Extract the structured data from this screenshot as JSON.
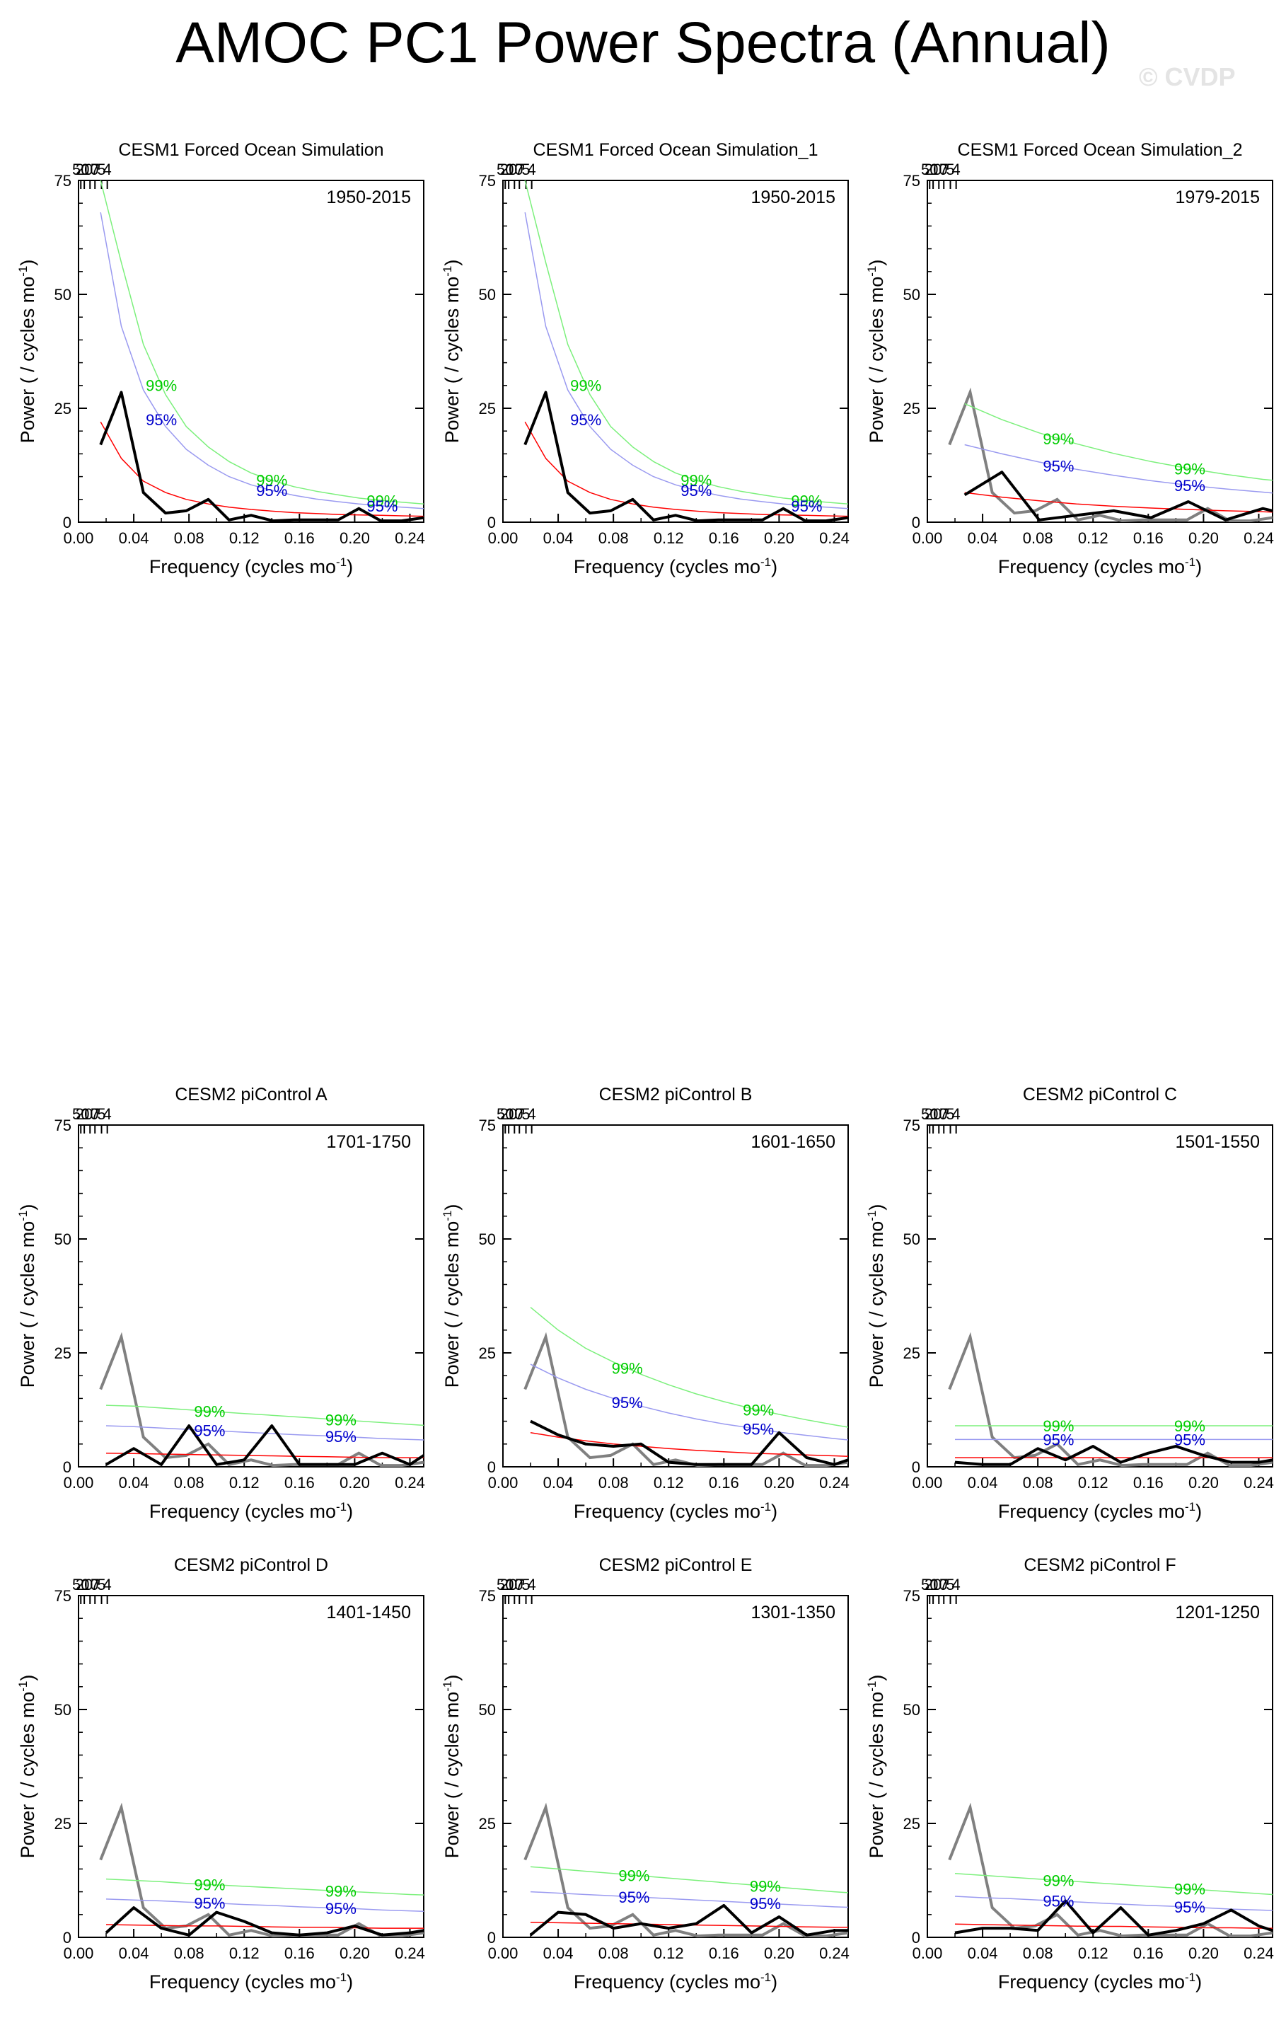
{
  "figure": {
    "title": "AMOC PC1 Power Spectra (Annual)",
    "watermark": "© CVDP"
  },
  "colors": {
    "spectrum": "#000000",
    "reference_spectrum": "#808080",
    "red_noise": "#ff0000",
    "ci95": "#0000cc",
    "ci99": "#00cc00",
    "ci95_line": "#9a9af0",
    "ci99_line": "#7cf07c"
  },
  "axes_common": {
    "xlabel": "Frequency (cycles mo",
    "xlabel_sup": "-1",
    "xlabel_end": ")",
    "ylabel": "Power ( / cycles mo",
    "ylabel_sup": "-1",
    "ylabel_end": ")",
    "xticks": [
      "0.00",
      "0.04",
      "0.08",
      "0.12",
      "0.16",
      "0.20",
      "0.24"
    ],
    "yticks": [
      "0",
      "25",
      "50",
      "75"
    ],
    "period_ticks": [
      "50",
      "20",
      "10",
      "7",
      "5",
      "4"
    ],
    "ci95_label": "95%",
    "ci99_label": "99%"
  },
  "chart_data": [
    {
      "type": "line",
      "title": "CESM1 Forced Ocean Simulation",
      "period": "1950-2015",
      "xlim": [
        0,
        0.25
      ],
      "ylim": [
        0,
        75
      ],
      "x": [
        0.016,
        0.031,
        0.047,
        0.063,
        0.078,
        0.094,
        0.109,
        0.125,
        0.141,
        0.156,
        0.172,
        0.188,
        0.203,
        0.219,
        0.234,
        0.25
      ],
      "series": [
        {
          "role": "spectrum",
          "values": [
            17,
            28.5,
            6.5,
            2,
            2.5,
            5,
            0.5,
            1.5,
            0.3,
            0.5,
            0.5,
            0.5,
            3,
            0.3,
            0.3,
            1
          ]
        },
        {
          "role": "red_noise",
          "values": [
            22,
            14,
            9,
            6.5,
            5,
            4,
            3.3,
            2.8,
            2.4,
            2.1,
            1.9,
            1.7,
            1.6,
            1.5,
            1.4,
            1.3
          ]
        },
        {
          "role": "ci95",
          "values": [
            68,
            43,
            29,
            21,
            16,
            12.5,
            10,
            8.2,
            6.9,
            5.9,
            5.1,
            4.5,
            4,
            3.6,
            3.3,
            3
          ]
        },
        {
          "role": "ci99",
          "values": [
            90,
            57,
            39,
            28,
            21,
            16.5,
            13.3,
            10.8,
            9.1,
            7.8,
            6.8,
            6,
            5.3,
            4.8,
            4.4,
            4
          ]
        }
      ],
      "ci_label_x": [
        0.06,
        0.14,
        0.22
      ]
    },
    {
      "type": "line",
      "title": "CESM1 Forced Ocean Simulation_1",
      "period": "1950-2015",
      "xlim": [
        0,
        0.25
      ],
      "ylim": [
        0,
        75
      ],
      "x": [
        0.016,
        0.031,
        0.047,
        0.063,
        0.078,
        0.094,
        0.109,
        0.125,
        0.141,
        0.156,
        0.172,
        0.188,
        0.203,
        0.219,
        0.234,
        0.25
      ],
      "series": [
        {
          "role": "spectrum",
          "values": [
            17,
            28.5,
            6.5,
            2,
            2.5,
            5,
            0.5,
            1.5,
            0.3,
            0.5,
            0.5,
            0.5,
            3,
            0.3,
            0.3,
            1
          ]
        },
        {
          "role": "red_noise",
          "values": [
            22,
            14,
            9,
            6.5,
            5,
            4,
            3.3,
            2.8,
            2.4,
            2.1,
            1.9,
            1.7,
            1.6,
            1.5,
            1.4,
            1.3
          ]
        },
        {
          "role": "ci95",
          "values": [
            68,
            43,
            29,
            21,
            16,
            12.5,
            10,
            8.2,
            6.9,
            5.9,
            5.1,
            4.5,
            4,
            3.6,
            3.3,
            3
          ]
        },
        {
          "role": "ci99",
          "values": [
            90,
            57,
            39,
            28,
            21,
            16.5,
            13.3,
            10.8,
            9.1,
            7.8,
            6.8,
            6,
            5.3,
            4.8,
            4.4,
            4
          ]
        }
      ],
      "ci_label_x": [
        0.06,
        0.14,
        0.22
      ]
    },
    {
      "type": "line",
      "title": "CESM1 Forced Ocean Simulation_2",
      "period": "1979-2015",
      "xlim": [
        0,
        0.25
      ],
      "ylim": [
        0,
        75
      ],
      "x": [
        0.027,
        0.054,
        0.081,
        0.108,
        0.135,
        0.162,
        0.189,
        0.216,
        0.243,
        0.25
      ],
      "series": [
        {
          "role": "spectrum",
          "values": [
            6,
            11,
            0.5,
            1.5,
            2.5,
            1,
            4.5,
            0.5,
            3,
            2.5
          ]
        },
        {
          "role": "red_noise",
          "values": [
            6.5,
            5.5,
            4.7,
            4,
            3.5,
            3.1,
            2.8,
            2.5,
            2.3,
            2.2
          ]
        },
        {
          "role": "ci95",
          "values": [
            17,
            15,
            13.2,
            11.6,
            10.3,
            9.1,
            8.1,
            7.3,
            6.6,
            6.4
          ]
        },
        {
          "role": "ci99",
          "values": [
            26,
            22.5,
            19.6,
            17.2,
            15.1,
            13.3,
            11.8,
            10.5,
            9.4,
            9.2
          ]
        }
      ],
      "ci_label_x": [
        0.095,
        0.19
      ]
    },
    {
      "type": "line",
      "title": "CESM2 piControl A",
      "period": "1701-1750",
      "xlim": [
        0,
        0.25
      ],
      "ylim": [
        0,
        75
      ],
      "x": [
        0.02,
        0.04,
        0.06,
        0.08,
        0.1,
        0.12,
        0.14,
        0.16,
        0.18,
        0.2,
        0.22,
        0.24,
        0.25
      ],
      "series": [
        {
          "role": "spectrum",
          "values": [
            0.5,
            4,
            0.5,
            9,
            0.5,
            1.5,
            9,
            0.5,
            0.5,
            0.5,
            3,
            0.5,
            2.5
          ]
        },
        {
          "role": "red_noise",
          "values": [
            3,
            2.9,
            2.8,
            2.7,
            2.6,
            2.5,
            2.4,
            2.3,
            2.2,
            2.1,
            2,
            2,
            2
          ]
        },
        {
          "role": "ci95",
          "values": [
            9,
            8.8,
            8.5,
            8.2,
            7.9,
            7.6,
            7.3,
            7,
            6.8,
            6.5,
            6.2,
            6,
            5.9
          ]
        },
        {
          "role": "ci99",
          "values": [
            13.5,
            13.3,
            12.9,
            12.5,
            12.1,
            11.7,
            11.3,
            10.9,
            10.5,
            10.1,
            9.7,
            9.3,
            9.1
          ]
        }
      ],
      "ci_label_x": [
        0.095,
        0.19
      ]
    },
    {
      "type": "line",
      "title": "CESM2 piControl B",
      "period": "1601-1650",
      "xlim": [
        0,
        0.25
      ],
      "ylim": [
        0,
        75
      ],
      "x": [
        0.02,
        0.04,
        0.06,
        0.08,
        0.1,
        0.12,
        0.14,
        0.16,
        0.18,
        0.2,
        0.22,
        0.24,
        0.25
      ],
      "series": [
        {
          "role": "spectrum",
          "values": [
            10,
            7,
            5,
            4.5,
            5,
            1,
            0.5,
            0.5,
            0.5,
            7.5,
            2,
            0.5,
            1.5
          ]
        },
        {
          "role": "red_noise",
          "values": [
            7.5,
            6.5,
            5.7,
            5,
            4.5,
            4,
            3.6,
            3.3,
            3,
            2.8,
            2.6,
            2.4,
            2.3
          ]
        },
        {
          "role": "ci95",
          "values": [
            22.5,
            19.5,
            17,
            15,
            13.3,
            11.8,
            10.5,
            9.4,
            8.5,
            7.6,
            6.9,
            6.2,
            5.9
          ]
        },
        {
          "role": "ci99",
          "values": [
            35,
            30,
            26,
            23,
            20.3,
            18,
            16,
            14.3,
            12.8,
            11.5,
            10.3,
            9.2,
            8.7
          ]
        }
      ],
      "ci_label_x": [
        0.09,
        0.185
      ]
    },
    {
      "type": "line",
      "title": "CESM2 piControl C",
      "period": "1501-1550",
      "xlim": [
        0,
        0.25
      ],
      "ylim": [
        0,
        75
      ],
      "x": [
        0.02,
        0.04,
        0.06,
        0.08,
        0.1,
        0.12,
        0.14,
        0.16,
        0.18,
        0.2,
        0.22,
        0.24,
        0.25
      ],
      "series": [
        {
          "role": "spectrum",
          "values": [
            1,
            0.5,
            0.5,
            4,
            1.5,
            4.5,
            1,
            3,
            4.5,
            2.5,
            1,
            1,
            1.5
          ]
        },
        {
          "role": "red_noise",
          "values": [
            2,
            2,
            2,
            2,
            2,
            2,
            2,
            2,
            2,
            2,
            2,
            2,
            2
          ]
        },
        {
          "role": "ci95",
          "values": [
            6,
            6,
            6,
            6,
            6,
            6,
            6,
            6,
            6,
            6,
            6,
            6,
            6
          ]
        },
        {
          "role": "ci99",
          "values": [
            9,
            9,
            9,
            9,
            9,
            9,
            9,
            9,
            9,
            9,
            9,
            9,
            9
          ]
        }
      ],
      "ci_label_x": [
        0.095,
        0.19
      ]
    },
    {
      "type": "line",
      "title": "CESM2 piControl D",
      "period": "1401-1450",
      "xlim": [
        0,
        0.25
      ],
      "ylim": [
        0,
        75
      ],
      "x": [
        0.02,
        0.04,
        0.06,
        0.08,
        0.1,
        0.12,
        0.14,
        0.16,
        0.18,
        0.2,
        0.22,
        0.24,
        0.25
      ],
      "series": [
        {
          "role": "spectrum",
          "values": [
            1,
            6.5,
            2,
            0.5,
            5.5,
            3.5,
            1,
            0.5,
            1,
            2.5,
            0.5,
            1,
            1.5
          ]
        },
        {
          "role": "red_noise",
          "values": [
            2.8,
            2.7,
            2.6,
            2.5,
            2.5,
            2.4,
            2.3,
            2.2,
            2.2,
            2.1,
            2,
            2,
            2
          ]
        },
        {
          "role": "ci95",
          "values": [
            8.4,
            8.2,
            8,
            7.7,
            7.5,
            7.2,
            7,
            6.7,
            6.5,
            6.3,
            6,
            5.8,
            5.7
          ]
        },
        {
          "role": "ci99",
          "values": [
            12.8,
            12.5,
            12.2,
            11.8,
            11.5,
            11.2,
            10.9,
            10.6,
            10.3,
            10,
            9.7,
            9.4,
            9.3
          ]
        }
      ],
      "ci_label_x": [
        0.095,
        0.19
      ]
    },
    {
      "type": "line",
      "title": "CESM2 piControl E",
      "period": "1301-1350",
      "xlim": [
        0,
        0.25
      ],
      "ylim": [
        0,
        75
      ],
      "x": [
        0.02,
        0.04,
        0.06,
        0.08,
        0.1,
        0.12,
        0.14,
        0.16,
        0.18,
        0.2,
        0.22,
        0.24,
        0.25
      ],
      "series": [
        {
          "role": "spectrum",
          "values": [
            0.5,
            5.5,
            5,
            2,
            3,
            2,
            3,
            7,
            1,
            4.5,
            0.5,
            1.5,
            1.5
          ]
        },
        {
          "role": "red_noise",
          "values": [
            3.3,
            3.2,
            3.1,
            3,
            2.9,
            2.8,
            2.7,
            2.6,
            2.5,
            2.4,
            2.3,
            2.2,
            2.2
          ]
        },
        {
          "role": "ci95",
          "values": [
            10,
            9.7,
            9.4,
            9.1,
            8.8,
            8.5,
            8.2,
            7.9,
            7.6,
            7.3,
            7,
            6.7,
            6.6
          ]
        },
        {
          "role": "ci99",
          "values": [
            15.5,
            15,
            14.5,
            14,
            13.5,
            13,
            12.5,
            12,
            11.5,
            11,
            10.5,
            10,
            9.8
          ]
        }
      ],
      "ci_label_x": [
        0.095,
        0.19
      ]
    },
    {
      "type": "line",
      "title": "CESM2 piControl F",
      "period": "1201-1250",
      "xlim": [
        0,
        0.25
      ],
      "ylim": [
        0,
        75
      ],
      "x": [
        0.02,
        0.04,
        0.06,
        0.08,
        0.1,
        0.12,
        0.14,
        0.16,
        0.18,
        0.2,
        0.22,
        0.24,
        0.25
      ],
      "series": [
        {
          "role": "spectrum",
          "values": [
            1,
            2,
            2,
            1.5,
            8,
            1,
            6.5,
            0.5,
            1.5,
            3,
            6,
            2.5,
            1.5
          ]
        },
        {
          "role": "red_noise",
          "values": [
            2.9,
            2.8,
            2.7,
            2.6,
            2.5,
            2.4,
            2.4,
            2.3,
            2.2,
            2.1,
            2.1,
            2,
            2
          ]
        },
        {
          "role": "ci95",
          "values": [
            9,
            8.7,
            8.5,
            8.2,
            7.9,
            7.6,
            7.3,
            7,
            6.8,
            6.5,
            6.2,
            6,
            5.9
          ]
        },
        {
          "role": "ci99",
          "values": [
            14,
            13.6,
            13.2,
            12.8,
            12.4,
            12,
            11.6,
            11.2,
            10.8,
            10.4,
            10,
            9.6,
            9.4
          ]
        }
      ],
      "ci_label_x": [
        0.095,
        0.19
      ]
    }
  ],
  "reference_spectrum": {
    "x": [
      0.016,
      0.031,
      0.047,
      0.063,
      0.078,
      0.094,
      0.109,
      0.125,
      0.141,
      0.156,
      0.172,
      0.188,
      0.203,
      0.219,
      0.234,
      0.25
    ],
    "values": [
      17,
      28.5,
      6.5,
      2,
      2.5,
      5,
      0.5,
      1.5,
      0.3,
      0.5,
      0.5,
      0.5,
      3,
      0.3,
      0.3,
      1
    ]
  }
}
